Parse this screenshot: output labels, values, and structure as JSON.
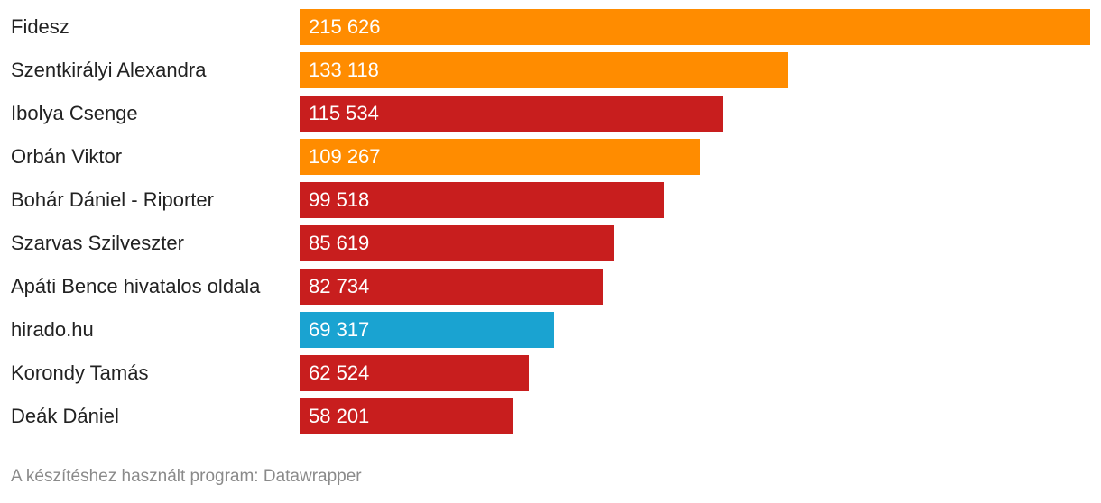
{
  "chart_data": {
    "type": "bar",
    "orientation": "horizontal",
    "categories": [
      "Fidesz",
      "Szentkirályi Alexandra",
      "Ibolya Csenge",
      "Orbán Viktor",
      "Bohár Dániel - Riporter",
      "Szarvas Szilveszter",
      "Apáti Bence hivatalos oldala",
      "hirado.hu",
      "Korondy Tamás",
      "Deák Dániel"
    ],
    "values": [
      215626,
      133118,
      115534,
      109267,
      99518,
      85619,
      82734,
      69317,
      62524,
      58201
    ],
    "value_labels": [
      "215 626",
      "133 118",
      "115 534",
      "109 267",
      "99 518",
      "85 619",
      "82 734",
      "69 317",
      "62 524",
      "58 201"
    ],
    "bar_colors": [
      "#ff8c00",
      "#ff8c00",
      "#c81e1e",
      "#ff8c00",
      "#c81e1e",
      "#c81e1e",
      "#c81e1e",
      "#1aa3d1",
      "#c81e1e",
      "#c81e1e"
    ],
    "xlim": [
      0,
      215626
    ],
    "grid": false,
    "legend": "none"
  },
  "footer": {
    "credit": "A készítéshez használt program: Datawrapper"
  }
}
